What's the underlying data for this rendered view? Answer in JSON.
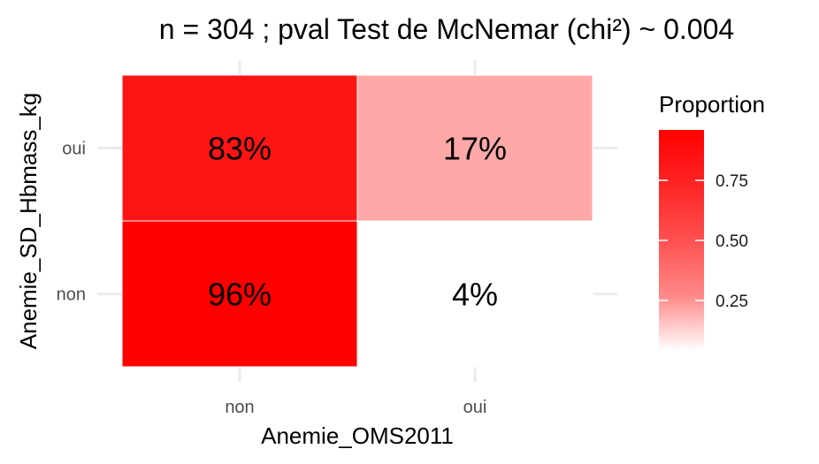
{
  "chart_data": {
    "type": "heatmap",
    "title": "n = 304 ; pval Test de McNemar (chi²) ~ 0.004",
    "xlabel": "Anemie_OMS2011",
    "ylabel": "Anemie_SD_Hbmass_kg",
    "x_categories": [
      "non",
      "oui"
    ],
    "y_categories": [
      "non",
      "oui"
    ],
    "cells": [
      {
        "x": "non",
        "y": "oui",
        "value": 0.83,
        "label": "83%"
      },
      {
        "x": "oui",
        "y": "oui",
        "value": 0.17,
        "label": "17%"
      },
      {
        "x": "non",
        "y": "non",
        "value": 0.96,
        "label": "96%"
      },
      {
        "x": "oui",
        "y": "non",
        "value": 0.04,
        "label": "4%"
      }
    ],
    "legend": {
      "title": "Proportion",
      "ticks": [
        0.25,
        0.5,
        0.75
      ],
      "tick_labels": [
        "0.25",
        "0.50",
        "0.75"
      ],
      "range": [
        0.04,
        0.96
      ],
      "low_color": "#ffffff",
      "high_color": "#ff0000",
      "placement": "right"
    },
    "grid": true
  }
}
